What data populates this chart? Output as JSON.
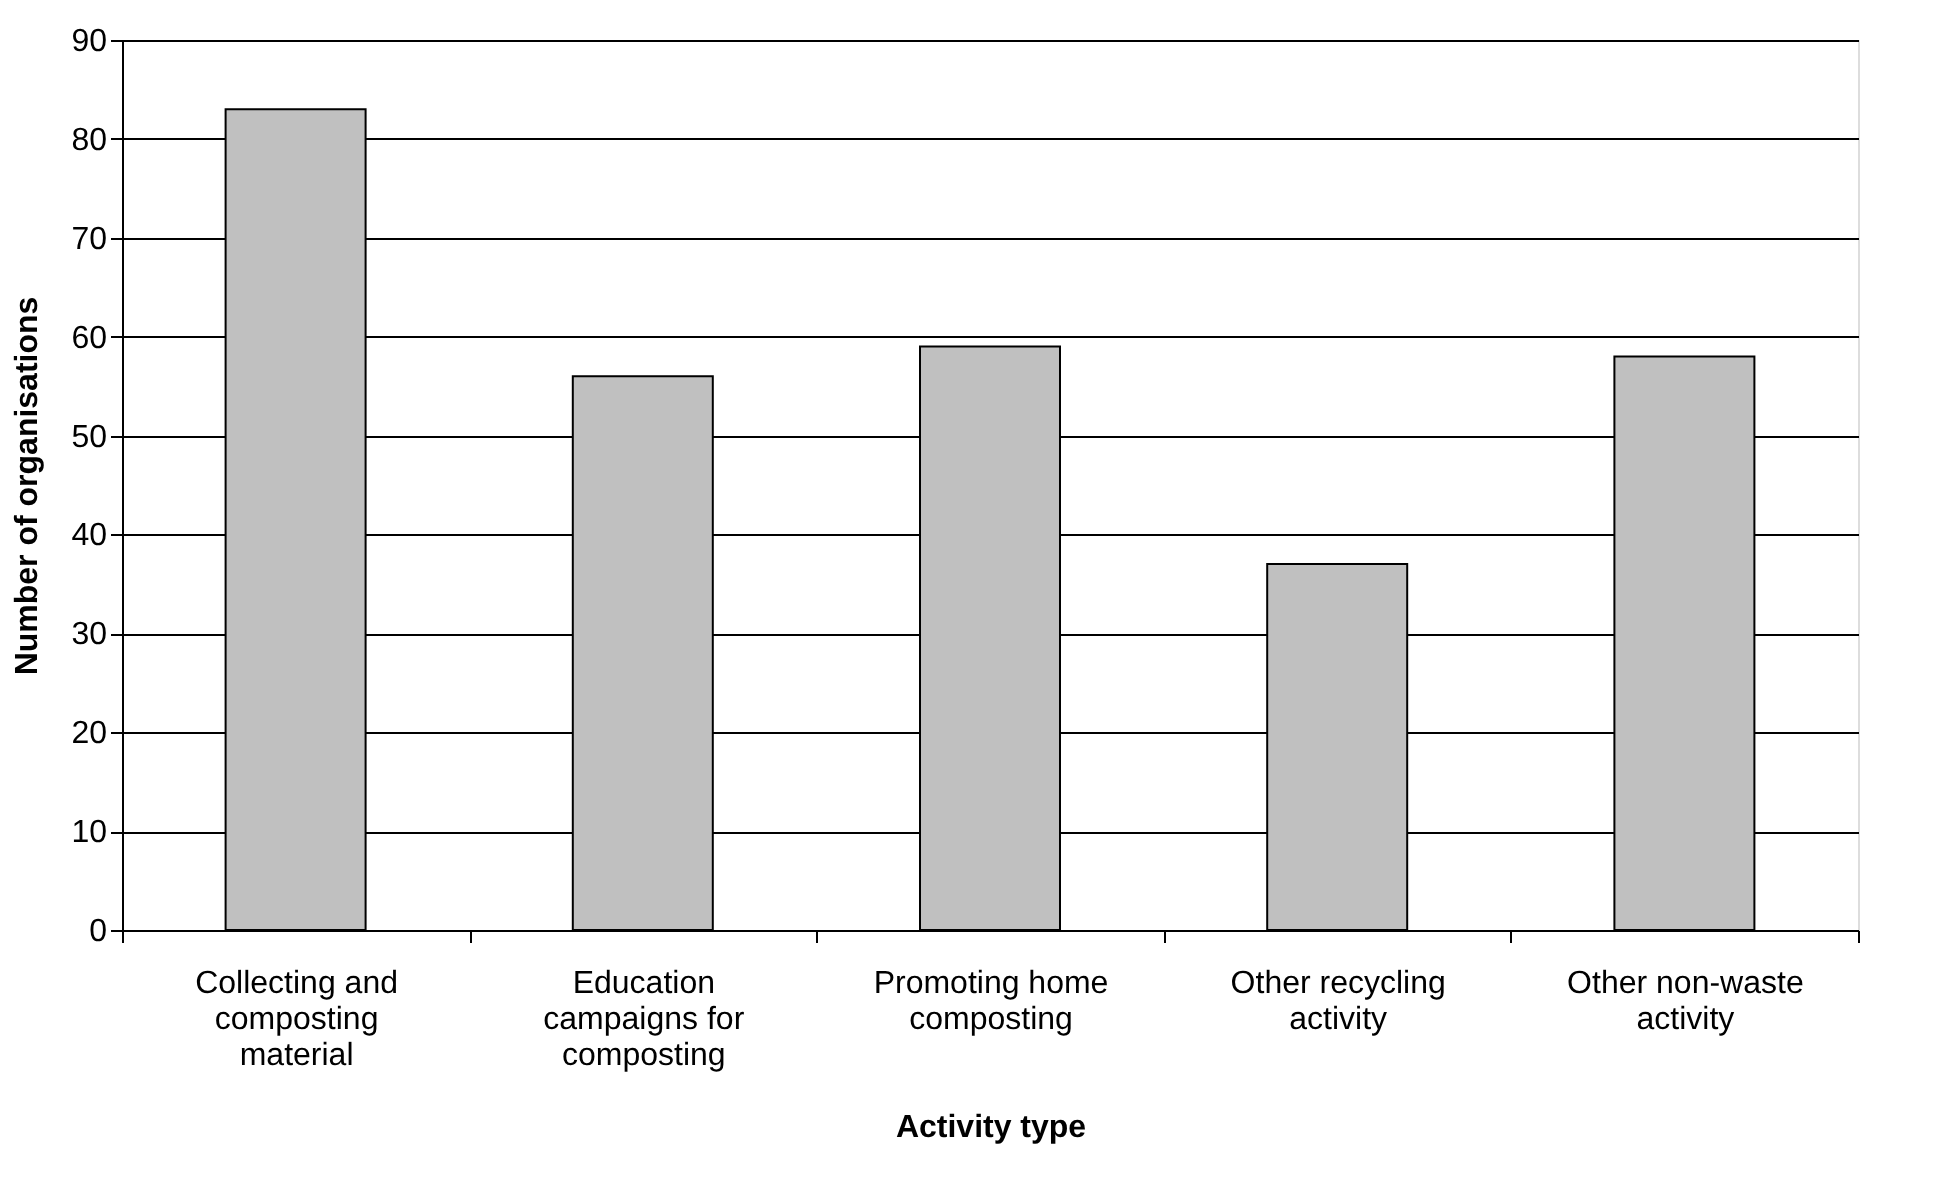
{
  "chart_data": {
    "type": "bar",
    "xlabel": "Activity type",
    "ylabel": "Number of organisations",
    "categories": [
      "Collecting and composting material",
      "Education campaigns for composting",
      "Promoting home composting",
      "Other recycling activity",
      "Other non-waste activity"
    ],
    "values": [
      83,
      56,
      59,
      37,
      58
    ],
    "color": "#c0c0c0",
    "ylim": [
      0,
      90
    ],
    "yticks": [
      0,
      10,
      20,
      30,
      40,
      50,
      60,
      70,
      80,
      90
    ],
    "grid": "y"
  }
}
